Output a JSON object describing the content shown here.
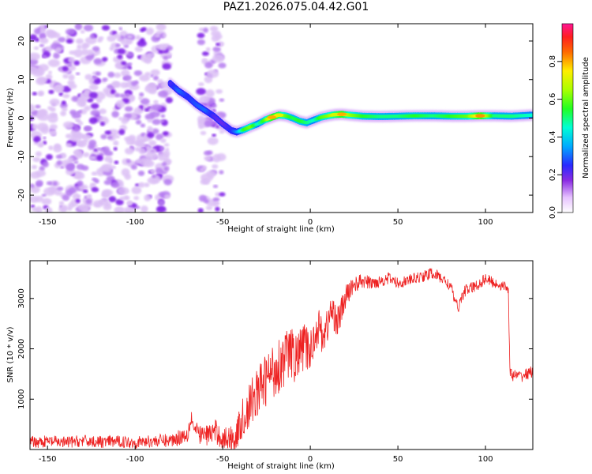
{
  "title": "PAZ1.2026.075.04.42.G01",
  "chart_data": [
    {
      "type": "heatmap",
      "title": "PAZ1.2026.075.04.42.G01",
      "xlabel": "Height of straight line (km)",
      "ylabel": "Frequency (Hz)",
      "xlim": [
        -160,
        127
      ],
      "ylim": [
        -24.5,
        24.5
      ],
      "xticks": [
        -150,
        -100,
        -50,
        0,
        50,
        100
      ],
      "yticks": [
        -20,
        -10,
        0,
        10,
        20
      ],
      "colorbar": {
        "label": "Normalized spectral amplitude",
        "range": [
          0,
          1
        ],
        "ticks": [
          0.0,
          0.2,
          0.4,
          0.6,
          0.8
        ]
      },
      "noise_region": {
        "x": [
          -160,
          -80
        ],
        "extra_strip_x": [
          -63,
          -50
        ],
        "freq": [
          -24,
          24
        ]
      },
      "ridge": {
        "x": [
          -80,
          -75,
          -70,
          -65,
          -60,
          -55,
          -50,
          -45,
          -42,
          -38,
          -34,
          -30,
          -26,
          -22,
          -18,
          -14,
          -10,
          -6,
          -2,
          2,
          6,
          10,
          14,
          18,
          22,
          30,
          40,
          50,
          60,
          70,
          80,
          90,
          97,
          105,
          115,
          127
        ],
        "freq": [
          9,
          7,
          5.5,
          3.5,
          2,
          0.5,
          -1.5,
          -3.2,
          -3.6,
          -3,
          -2.2,
          -1.5,
          -0.5,
          0.2,
          0.8,
          0.6,
          0,
          -0.8,
          -1.2,
          -0.5,
          0.2,
          0.6,
          0.9,
          1.0,
          0.8,
          0.5,
          0.4,
          0.5,
          0.6,
          0.6,
          0.5,
          0.5,
          0.6,
          0.6,
          0.5,
          0.8
        ],
        "amplitude": [
          0.22,
          0.3,
          0.25,
          0.28,
          0.3,
          0.22,
          0.2,
          0.25,
          0.32,
          0.55,
          0.62,
          0.45,
          0.58,
          0.8,
          0.72,
          0.6,
          0.52,
          0.55,
          0.5,
          0.45,
          0.58,
          0.62,
          0.7,
          0.8,
          0.65,
          0.55,
          0.5,
          0.5,
          0.55,
          0.5,
          0.55,
          0.6,
          0.82,
          0.5,
          0.5,
          0.45
        ]
      }
    },
    {
      "type": "line",
      "xlabel": "Height of straight line (km)",
      "ylabel": "SNR (10 * v/v)",
      "xlim": [
        -160,
        127
      ],
      "ylim": [
        0,
        3750
      ],
      "xticks": [
        -150,
        -100,
        -50,
        0,
        50,
        100
      ],
      "yticks": [
        1000,
        2000,
        3000
      ],
      "series": [
        {
          "name": "SNR",
          "color": "#ee2222",
          "x": [
            -160,
            -150,
            -140,
            -130,
            -120,
            -110,
            -100,
            -90,
            -80,
            -75,
            -70,
            -68,
            -66,
            -62,
            -58,
            -54,
            -50,
            -46,
            -42,
            -40,
            -36,
            -32,
            -28,
            -24,
            -20,
            -16,
            -12,
            -8,
            -4,
            0,
            4,
            8,
            12,
            16,
            20,
            24,
            30,
            35,
            40,
            45,
            50,
            55,
            60,
            65,
            70,
            75,
            80,
            84,
            88,
            95,
            100,
            105,
            110,
            113,
            114,
            115,
            120,
            127
          ],
          "value": [
            150,
            160,
            140,
            170,
            150,
            160,
            140,
            170,
            180,
            240,
            320,
            650,
            380,
            280,
            300,
            360,
            200,
            230,
            260,
            520,
            760,
            1050,
            1250,
            1450,
            1600,
            1750,
            1950,
            1800,
            2050,
            1950,
            2450,
            2250,
            2750,
            2550,
            3000,
            3250,
            3350,
            3300,
            3350,
            3400,
            3300,
            3350,
            3400,
            3450,
            3500,
            3400,
            3250,
            2800,
            3150,
            3250,
            3400,
            3300,
            3250,
            3200,
            1500,
            1480,
            1450,
            1550
          ],
          "noise_amplitude": [
            120,
            120,
            120,
            120,
            120,
            120,
            120,
            120,
            140,
            160,
            180,
            200,
            180,
            200,
            220,
            240,
            220,
            260,
            320,
            380,
            450,
            480,
            520,
            560,
            560,
            560,
            520,
            500,
            480,
            420,
            400,
            380,
            360,
            320,
            260,
            180,
            150,
            130,
            120,
            120,
            110,
            110,
            110,
            120,
            120,
            120,
            120,
            120,
            120,
            120,
            120,
            110,
            100,
            100,
            120,
            120,
            120,
            120
          ]
        }
      ]
    }
  ]
}
